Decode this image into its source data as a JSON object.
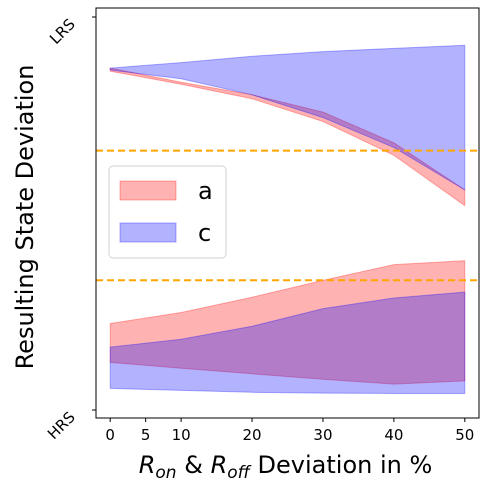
{
  "chart_data": {
    "type": "area",
    "xlabel_parts": [
      {
        "text": "R",
        "italic": true
      },
      {
        "text": "on",
        "italic": true,
        "sub": true
      },
      {
        "text": " & ",
        "italic": false
      },
      {
        "text": "R",
        "italic": true
      },
      {
        "text": "off",
        "italic": true,
        "sub": true
      },
      {
        "text": " Deviation in %",
        "italic": false
      }
    ],
    "ylabel": "Resulting State Deviation",
    "xlim": [
      -2,
      52
    ],
    "ylim": [
      0,
      1
    ],
    "xticks": [
      0,
      5,
      10,
      20,
      30,
      40,
      50
    ],
    "xtick_labels": [
      "0",
      "5",
      "10",
      "20",
      "30",
      "40",
      "50"
    ],
    "yticks": [
      0.0,
      1.0
    ],
    "ytick_labels": [
      "HRS",
      "LRS"
    ],
    "x": [
      0,
      10,
      20,
      30,
      40,
      50
    ],
    "reference_lines": [
      {
        "orientation": "horizontal",
        "y": 0.66,
        "style": "dashed",
        "color": "#ffa500"
      },
      {
        "orientation": "horizontal",
        "y": 0.33,
        "style": "dashed",
        "color": "#ffa500"
      }
    ],
    "series": [
      {
        "name": "a",
        "color": "#ff0000",
        "alpha": 0.3,
        "bands": [
          {
            "lower": [
              0.862,
              0.829,
              0.792,
              0.734,
              0.648,
              0.52
            ],
            "upper": [
              0.87,
              0.834,
              0.802,
              0.758,
              0.68,
              0.56
            ]
          },
          {
            "lower": [
              0.121,
              0.106,
              0.092,
              0.078,
              0.066,
              0.074
            ],
            "upper": [
              0.22,
              0.248,
              0.287,
              0.33,
              0.37,
              0.38
            ]
          }
        ]
      },
      {
        "name": "c",
        "color": "#0000ff",
        "alpha": 0.3,
        "bands": [
          {
            "lower": [
              0.865,
              0.843,
              0.802,
              0.744,
              0.668,
              0.56
            ],
            "upper": [
              0.87,
              0.884,
              0.9,
              0.912,
              0.92,
              0.928
            ]
          },
          {
            "lower": [
              0.055,
              0.05,
              0.045,
              0.043,
              0.042,
              0.042
            ],
            "upper": [
              0.16,
              0.18,
              0.213,
              0.258,
              0.285,
              0.3
            ]
          }
        ]
      }
    ],
    "legend": {
      "placement": "center-left",
      "entries": [
        "a",
        "c"
      ]
    },
    "grid": false
  }
}
